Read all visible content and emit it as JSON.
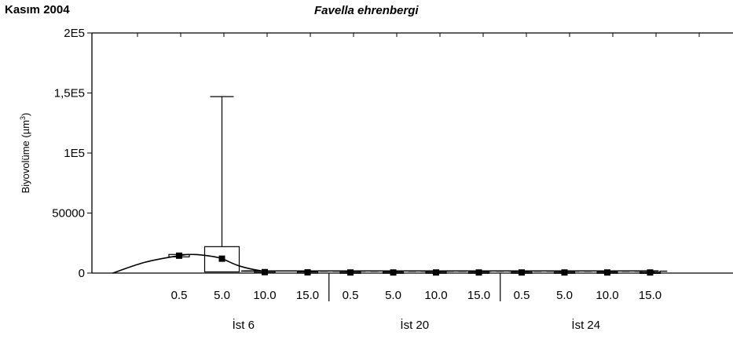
{
  "corner_label": "Kasım 2004",
  "chart_data": {
    "type": "box",
    "title": "Favella ehrenbergi",
    "xlabel": "",
    "ylabel": "Biyovolüme (µm³)",
    "ylabel_main": "Biyovolüme (µm",
    "ylabel_sup": "3",
    "ylabel_close": ")",
    "ylim": [
      0,
      200000
    ],
    "yticks": [
      0,
      50000,
      100000,
      150000,
      200000
    ],
    "ytick_labels": [
      "0",
      "50000",
      "1E5",
      "1,5E5",
      "2E5"
    ],
    "grid": false,
    "categories": [
      "0.5",
      "5.0",
      "10.0",
      "15.0",
      "0.5",
      "5.0",
      "10.0",
      "15.0",
      "0.5",
      "5.0",
      "10.0",
      "15.0"
    ],
    "groups": [
      {
        "label": "İst 6",
        "span": [
          0,
          3
        ]
      },
      {
        "label": "İst 20",
        "span": [
          4,
          7
        ]
      },
      {
        "label": "İst 24",
        "span": [
          8,
          11
        ]
      }
    ],
    "series": [
      {
        "median": [
          14500,
          12000,
          800,
          600,
          500,
          500,
          500,
          500,
          500,
          500,
          500,
          500
        ],
        "q1": [
          13500,
          1000,
          400,
          300,
          300,
          300,
          300,
          300,
          300,
          300,
          300,
          300
        ],
        "q3": [
          15500,
          22000,
          1200,
          900,
          800,
          800,
          800,
          800,
          800,
          800,
          800,
          700
        ],
        "min": [
          13500,
          1000,
          400,
          300,
          300,
          300,
          300,
          300,
          300,
          300,
          300,
          300
        ],
        "max": [
          15500,
          147000,
          1200,
          900,
          800,
          800,
          800,
          800,
          800,
          800,
          800,
          700
        ]
      }
    ],
    "smooth_curve": {
      "x": [
        -1.55,
        -0.8,
        0,
        0.35,
        0.75,
        1.0,
        1.4,
        1.9,
        2.2,
        11.2
      ],
      "y": [
        0,
        9000,
        14500,
        15500,
        14000,
        12000,
        6000,
        2000,
        1800,
        1800
      ]
    },
    "dashed_line": {
      "x": [
        3,
        11.4
      ],
      "y": [
        300,
        300
      ]
    }
  }
}
